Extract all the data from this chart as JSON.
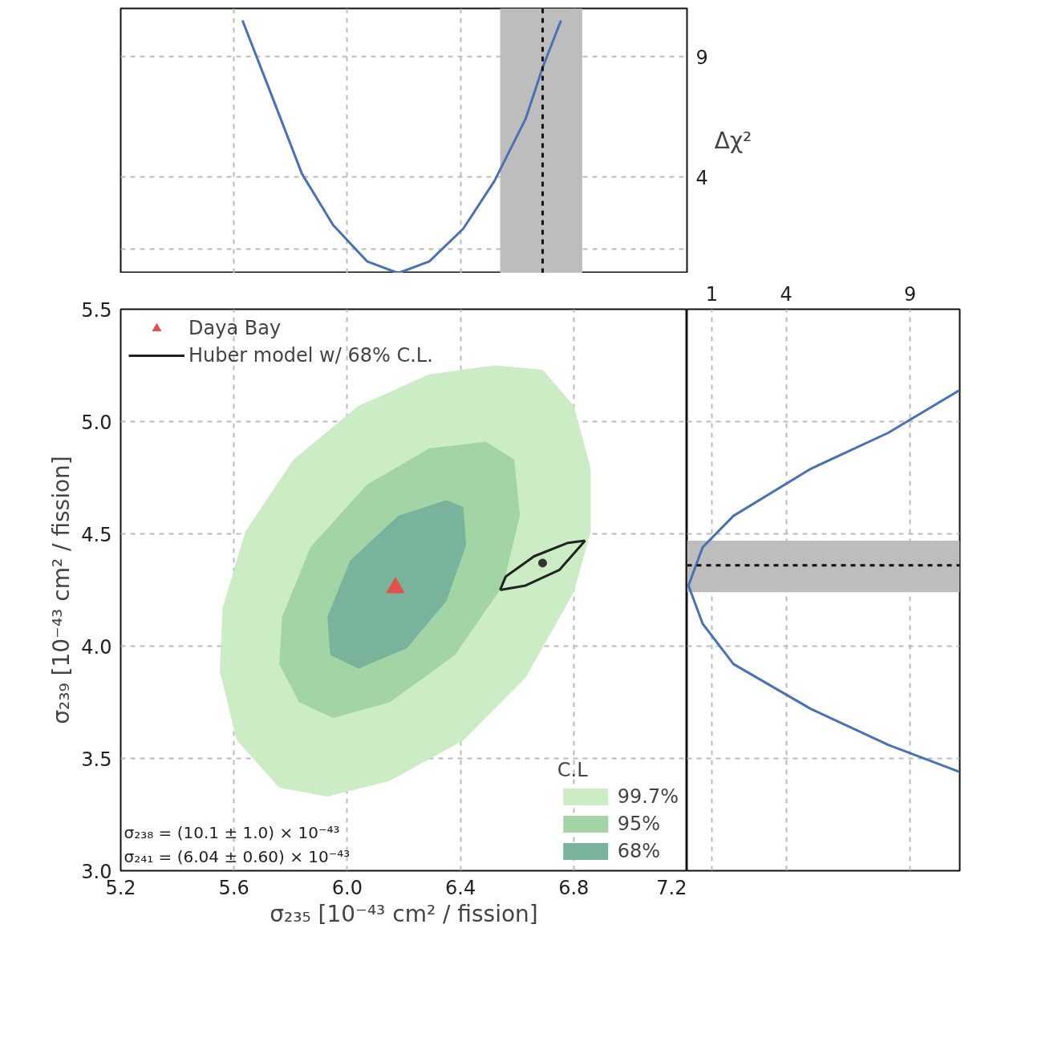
{
  "chart_data": [
    {
      "type": "line",
      "ylabel": "Δχ²",
      "xlim": [
        5.2,
        7.2
      ],
      "xticks": [
        5.2,
        5.6,
        6.0,
        6.4,
        6.8,
        7.2
      ],
      "ylim": [
        0,
        11
      ],
      "yticks": [
        {
          "value": 1,
          "label": null
        },
        4,
        9
      ],
      "tick_labels": "y",
      "grid": true,
      "series": [
        {
          "color": "#4a72b0",
          "x": [
            5.63,
            5.73,
            5.84,
            5.95,
            6.07,
            6.18,
            6.29,
            6.41,
            6.52,
            6.63,
            6.69,
            6.755
          ],
          "values": [
            10.5,
            7.48,
            4.13,
            2.0,
            0.49,
            0,
            0.49,
            1.85,
            3.83,
            6.41,
            8.54,
            10.5
          ]
        }
      ],
      "bands": [
        {
          "axis": "x",
          "from": 6.54,
          "to": 6.83,
          "color": "#bdbdbd"
        }
      ],
      "ref_lines": [
        {
          "axis": "x",
          "value": 6.69,
          "color": "#111111",
          "line_style": "dashed"
        }
      ]
    },
    {
      "type": "area",
      "xlabel": "σ₂₃₅ [10⁻⁴³ cm² / fission]",
      "ylabel": "σ₂₃₉ [10⁻⁴³ cm² / fission]",
      "xlim": [
        5.2,
        7.2
      ],
      "xticks": [
        5.2,
        5.6,
        {
          "value": 6.0,
          "label": "6.0"
        },
        6.4,
        6.8,
        7.2
      ],
      "ylim": [
        3.0,
        5.5
      ],
      "yticks": [
        {
          "value": 3.0,
          "label": "3.0"
        },
        3.5,
        {
          "value": 4.0,
          "label": "4.0"
        },
        4.5,
        {
          "value": 5.0,
          "label": "5.0"
        },
        5.5
      ],
      "grid": true,
      "legend": "top left",
      "legend_title": "C.L",
      "annotations": [
        "σ₂₃₈ = (10.1 ± 1.0) × 10⁻⁴³",
        "σ₂₄₁ = (6.04 ± 0.60) × 10⁻⁴³"
      ],
      "series": [
        {
          "name": "99.7%",
          "color": "#cbecc4",
          "x": [
            6.86,
            6.8,
            6.69,
            6.52,
            6.29,
            6.04,
            5.81,
            5.64,
            5.56,
            5.55,
            5.61,
            5.76,
            5.93,
            6.15,
            6.41,
            6.63,
            6.8,
            6.86
          ],
          "values": [
            4.79,
            5.07,
            5.23,
            5.25,
            5.21,
            5.07,
            4.83,
            4.51,
            4.17,
            3.89,
            3.58,
            3.37,
            3.33,
            3.4,
            3.58,
            3.86,
            4.24,
            4.51
          ]
        },
        {
          "name": "95%",
          "color": "#a3d4a6",
          "x": [
            6.49,
            6.29,
            6.07,
            5.87,
            5.77,
            5.76,
            5.83,
            5.95,
            6.15,
            6.38,
            6.55,
            6.61,
            6.59
          ],
          "values": [
            4.91,
            4.88,
            4.72,
            4.44,
            4.13,
            3.92,
            3.75,
            3.68,
            3.75,
            3.96,
            4.27,
            4.58,
            4.83
          ]
        },
        {
          "name": "68%",
          "color": "#7ab39c",
          "x": [
            6.35,
            6.18,
            6.01,
            5.93,
            5.94,
            6.04,
            6.21,
            6.35,
            6.42,
            6.41
          ],
          "values": [
            4.65,
            4.58,
            4.38,
            4.13,
            3.96,
            3.9,
            3.99,
            4.2,
            4.45,
            4.62
          ]
        },
        {
          "name": "Daya Bay",
          "type": "scatter",
          "marker": "triangle",
          "color": "#e0524a",
          "x": [
            6.17
          ],
          "values": [
            4.26
          ]
        },
        {
          "name": "Huber model w/ 68% C.L.",
          "type": "line",
          "color": "#222222",
          "x": [
            6.54,
            6.56,
            6.66,
            6.78,
            6.84
          ],
          "values": [
            4.25,
            4.31,
            4.4,
            4.46,
            4.47
          ]
        },
        {
          "type": "line",
          "color": "#222222",
          "x": [
            6.54,
            6.63,
            6.75,
            6.84
          ],
          "values": [
            4.25,
            4.27,
            4.34,
            4.47
          ]
        },
        {
          "type": "scatter",
          "marker": "circle",
          "color": "#333333",
          "x": [
            6.69
          ],
          "values": [
            4.37
          ]
        }
      ]
    },
    {
      "type": "line",
      "xlim": [
        0,
        11
      ],
      "xticks": [
        1,
        4,
        9
      ],
      "ylim": [
        3.0,
        5.5
      ],
      "yticks": [
        3.0,
        3.5,
        4.0,
        4.5,
        5.0,
        5.5
      ],
      "tick_labels": "x",
      "grid": true,
      "series": [
        {
          "color": "#4a72b0",
          "x": [
            11,
            8.12,
            5.0,
            1.875,
            0.63,
            0.06,
            0.63,
            1.875,
            5.0,
            8.12,
            11
          ],
          "values": [
            5.14,
            4.95,
            4.79,
            4.58,
            4.44,
            4.27,
            4.1,
            3.92,
            3.72,
            3.56,
            3.44
          ]
        }
      ],
      "bands": [
        {
          "axis": "y",
          "from": 4.24,
          "to": 4.47,
          "color": "#bdbdbd"
        }
      ],
      "ref_lines": [
        {
          "axis": "y",
          "value": 4.36,
          "color": "#111111",
          "line_style": "dashed"
        }
      ]
    }
  ]
}
